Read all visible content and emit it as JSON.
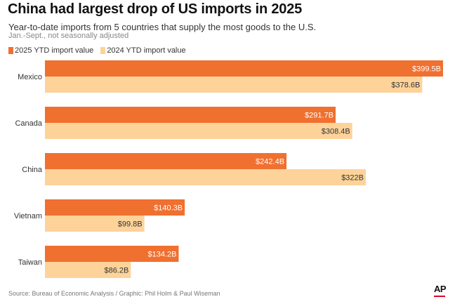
{
  "title": "China had largest drop of US imports in 2025",
  "subtitle": "Year-to-date imports from 5 countries that supply the most goods to the U.S.",
  "note": "Jan.-Sept., not seasonally adjusted",
  "source": "Source: Bureau of Economic Analysis / Graphic: Phil Holm & Paul Wiseman",
  "logo": "AP",
  "colors": {
    "series_2025": "#f07030",
    "series_2024": "#fdd39a",
    "logo_accent": "#e4002b"
  },
  "chart_data": {
    "type": "bar",
    "orientation": "horizontal",
    "categories": [
      "Mexico",
      "Canada",
      "China",
      "Vietnam",
      "Taiwan"
    ],
    "series": [
      {
        "name": "2025 YTD import value",
        "values": [
          399.5,
          291.7,
          242.4,
          140.3,
          134.2
        ],
        "labels": [
          "$399.5B",
          "$291.7B",
          "$242.4B",
          "$140.3B",
          "$134.2B"
        ]
      },
      {
        "name": "2024 YTD import value",
        "values": [
          378.6,
          308.4,
          322,
          99.8,
          86.2
        ],
        "labels": [
          "$378.6B",
          "$308.4B",
          "$322B",
          "$99.8B",
          "$86.2B"
        ]
      }
    ],
    "xlim": [
      0,
      399.5
    ],
    "legend": "top-left",
    "grid": false
  }
}
